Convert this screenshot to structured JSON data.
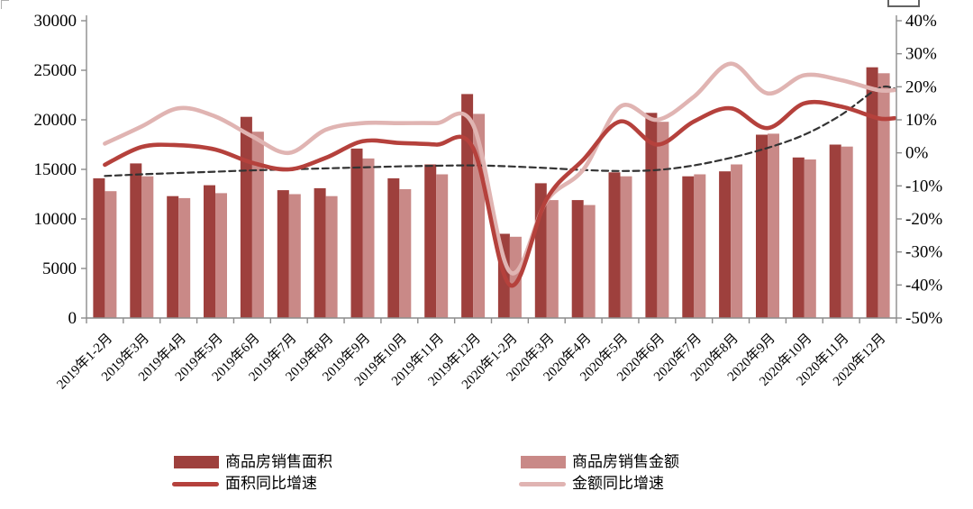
{
  "chart_data": {
    "type": "combo-bar-line",
    "title": "",
    "grid": false,
    "legend_position": "bottom",
    "categories": [
      "2019年1-2月",
      "2019年3月",
      "2019年4月",
      "2019年5月",
      "2019年6月",
      "2019年7月",
      "2019年8月",
      "2019年9月",
      "2019年10月",
      "2019年11月",
      "2019年12月",
      "2020年1-2月",
      "2020年3月",
      "2020年4月",
      "2020年5月",
      "2020年6月",
      "2020年7月",
      "2020年8月",
      "2020年9月",
      "2020年10月",
      "2020年11月",
      "2020年12月"
    ],
    "bar_series": [
      {
        "name": "商品房销售面积",
        "axis": "left",
        "color": "#9E403D",
        "values": [
          14100,
          15600,
          12300,
          13400,
          20300,
          12900,
          13100,
          17100,
          14100,
          15500,
          22600,
          8500,
          13600,
          11900,
          14700,
          20700,
          14300,
          14800,
          18500,
          16200,
          17500,
          25300
        ]
      },
      {
        "name": "商品房销售金额",
        "axis": "left",
        "color": "#C98987",
        "values": [
          12800,
          14300,
          12100,
          12600,
          18800,
          12500,
          12300,
          16100,
          13000,
          14500,
          20600,
          8200,
          11900,
          11400,
          14300,
          19800,
          14500,
          15500,
          18600,
          16000,
          17300,
          24700
        ]
      }
    ],
    "line_series": [
      {
        "name": "趋势虚线",
        "axis": "right",
        "color": "#333333",
        "style": "dashed",
        "in_legend": false,
        "values_pct": [
          -7,
          -6.5,
          -6.1,
          -5.7,
          -5.3,
          -5,
          -4.7,
          -4.4,
          -4.1,
          -3.9,
          -3.8,
          -4.1,
          -4.6,
          -5.2,
          -5.5,
          -5.2,
          -3.8,
          -1.5,
          1.5,
          5.5,
          11.5,
          19.5
        ]
      },
      {
        "name": "金额同比增速",
        "axis": "right",
        "color": "#E0B4B2",
        "style": "solid",
        "in_legend": true,
        "values_pct": [
          2.8,
          8,
          13.5,
          11,
          5,
          0,
          7,
          9,
          9,
          9,
          8.5,
          -36,
          -14.5,
          -5,
          14,
          10,
          17,
          27,
          18,
          23.5,
          22,
          19
        ]
      },
      {
        "name": "面积同比增速",
        "axis": "right",
        "color": "#B5413C",
        "style": "solid",
        "in_legend": true,
        "values_pct": [
          -3.6,
          1.8,
          2.3,
          1,
          -3,
          -5,
          -1.5,
          3.5,
          3,
          2.5,
          1.5,
          -40,
          -14,
          -2,
          9.5,
          2.5,
          9.5,
          13.5,
          7.5,
          15,
          14,
          10.5
        ]
      }
    ],
    "left_axis": {
      "min": 0,
      "max": 30000,
      "tick_step": 5000,
      "tick_labels": [
        "0",
        "5000",
        "10000",
        "15000",
        "20000",
        "25000",
        "30000"
      ]
    },
    "right_axis": {
      "min": -50,
      "max": 40,
      "tick_step": 10,
      "tick_labels": [
        "40%",
        "30%",
        "20%",
        "10%",
        "0%",
        "-10%",
        "-20%",
        "-30%",
        "-40%",
        "-50%"
      ]
    },
    "legend": {
      "items": [
        {
          "label": "商品房销售面积",
          "type": "bar",
          "color": "#9E403D"
        },
        {
          "label": "商品房销售金额",
          "type": "bar",
          "color": "#C98987"
        },
        {
          "label": "面积同比增速",
          "type": "line",
          "color": "#B5413C"
        },
        {
          "label": "金额同比增速",
          "type": "line",
          "color": "#E0B4B2"
        }
      ]
    },
    "axis_color": "#8C8C8C"
  }
}
